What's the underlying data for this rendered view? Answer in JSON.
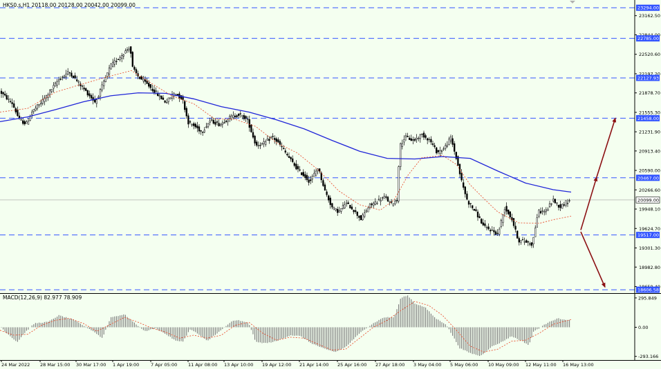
{
  "colors": {
    "background": "#f4fff0",
    "axis": "#000000",
    "level_line": "#3355ff",
    "ma_slow": "#1f24d8",
    "ma_fast": "#e8401f",
    "candle": "#000000",
    "histogram": "#7a7a7a",
    "macd_signal": "#e8401f",
    "arrow": "#8b0f12",
    "current_price_line": "#b0b0b0",
    "label_bg": "#3355ff",
    "label_text": "#ffffff",
    "current_label_bg": "#ffffff"
  },
  "chart_data": [
    {
      "type": "candlestick",
      "header": "HKS0.s,H1  20118.00 20128.00 20042.00 20099.00",
      "ylim": [
        18550,
        23400
      ],
      "y_ticks": [
        "23162.50",
        "22844.00",
        "22520.60",
        "22197.20",
        "21878.70",
        "21555.30",
        "21231.90",
        "20913.40",
        "20590.00",
        "20266.60",
        "19948.10",
        "19624.70",
        "19301.30",
        "18982.80",
        "18659.40"
      ],
      "x_labels": [
        "24 Mar 2022",
        "28 Mar 15:00",
        "30 Mar 17:00",
        "1 Apr 19:00",
        "7 Apr 05:00",
        "11 Apr 08:00",
        "13 Apr 10:00",
        "19 Apr 12:00",
        "21 Apr 14:00",
        "25 Apr 16:00",
        "27 Apr 18:00",
        "3 May 04:00",
        "5 May 06:00",
        "10 May 09:00",
        "12 May 11:00",
        "16 May 13:00"
      ],
      "levels": [
        {
          "value": 23294.0,
          "label": "23294.00"
        },
        {
          "value": 22785.0,
          "label": "22785.00"
        },
        {
          "value": 22127.93,
          "label": "22127.93"
        },
        {
          "value": 21458.0,
          "label": "21458.00"
        },
        {
          "value": 20467.0,
          "label": "20467.00"
        },
        {
          "value": 19517.0,
          "label": "19517.00"
        },
        {
          "value": 18606.58,
          "label": "18606.58"
        }
      ],
      "current_price": {
        "value": 20099.0,
        "label": "20099.00"
      },
      "price_path": [
        [
          0,
          21900
        ],
        [
          18,
          21700
        ],
        [
          28,
          21430
        ],
        [
          38,
          21360
        ],
        [
          46,
          21560
        ],
        [
          58,
          21700
        ],
        [
          70,
          21870
        ],
        [
          85,
          22100
        ],
        [
          100,
          22230
        ],
        [
          112,
          22070
        ],
        [
          126,
          21880
        ],
        [
          138,
          21720
        ],
        [
          150,
          22050
        ],
        [
          160,
          22330
        ],
        [
          172,
          22460
        ],
        [
          184,
          22600
        ],
        [
          188,
          22650
        ],
        [
          192,
          22280
        ],
        [
          200,
          22150
        ],
        [
          214,
          22010
        ],
        [
          226,
          21870
        ],
        [
          240,
          21720
        ],
        [
          252,
          21880
        ],
        [
          264,
          21780
        ],
        [
          272,
          21390
        ],
        [
          282,
          21320
        ],
        [
          292,
          21230
        ],
        [
          304,
          21420
        ],
        [
          318,
          21350
        ],
        [
          332,
          21470
        ],
        [
          346,
          21520
        ],
        [
          358,
          21430
        ],
        [
          370,
          21010
        ],
        [
          382,
          21040
        ],
        [
          394,
          21150
        ],
        [
          406,
          21000
        ],
        [
          418,
          20800
        ],
        [
          430,
          20610
        ],
        [
          440,
          20500
        ],
        [
          448,
          20400
        ],
        [
          460,
          20640
        ],
        [
          470,
          20250
        ],
        [
          480,
          19980
        ],
        [
          490,
          19900
        ],
        [
          500,
          20050
        ],
        [
          510,
          19950
        ],
        [
          522,
          19780
        ],
        [
          534,
          20000
        ],
        [
          546,
          20080
        ],
        [
          556,
          20150
        ],
        [
          566,
          20030
        ],
        [
          574,
          20100
        ],
        [
          578,
          20990
        ],
        [
          586,
          21150
        ],
        [
          598,
          21080
        ],
        [
          610,
          21190
        ],
        [
          622,
          21090
        ],
        [
          632,
          20890
        ],
        [
          642,
          20950
        ],
        [
          652,
          21130
        ],
        [
          660,
          20790
        ],
        [
          668,
          20390
        ],
        [
          676,
          20080
        ],
        [
          688,
          19900
        ],
        [
          700,
          19650
        ],
        [
          710,
          19600
        ],
        [
          720,
          19530
        ],
        [
          730,
          19970
        ],
        [
          740,
          19790
        ],
        [
          750,
          19420
        ],
        [
          760,
          19410
        ],
        [
          770,
          19360
        ],
        [
          778,
          19900
        ],
        [
          790,
          19920
        ],
        [
          800,
          20100
        ],
        [
          810,
          19980
        ],
        [
          818,
          20060
        ],
        [
          826,
          20099
        ]
      ],
      "ma_slow": [
        [
          0,
          21400
        ],
        [
          40,
          21480
        ],
        [
          80,
          21600
        ],
        [
          120,
          21730
        ],
        [
          160,
          21830
        ],
        [
          200,
          21880
        ],
        [
          240,
          21870
        ],
        [
          280,
          21780
        ],
        [
          320,
          21650
        ],
        [
          360,
          21560
        ],
        [
          400,
          21430
        ],
        [
          440,
          21280
        ],
        [
          480,
          21090
        ],
        [
          520,
          20910
        ],
        [
          560,
          20790
        ],
        [
          600,
          20780
        ],
        [
          640,
          20820
        ],
        [
          680,
          20790
        ],
        [
          720,
          20580
        ],
        [
          760,
          20380
        ],
        [
          800,
          20270
        ],
        [
          826,
          20230
        ]
      ],
      "ma_fast": [
        [
          0,
          21560
        ],
        [
          40,
          21620
        ],
        [
          80,
          21890
        ],
        [
          120,
          22030
        ],
        [
          160,
          22160
        ],
        [
          190,
          22250
        ],
        [
          220,
          22030
        ],
        [
          250,
          21820
        ],
        [
          280,
          21700
        ],
        [
          310,
          21450
        ],
        [
          340,
          21440
        ],
        [
          370,
          21320
        ],
        [
          400,
          21050
        ],
        [
          430,
          20880
        ],
        [
          460,
          20600
        ],
        [
          490,
          20250
        ],
        [
          520,
          20020
        ],
        [
          550,
          19930
        ],
        [
          570,
          20100
        ],
        [
          590,
          20510
        ],
        [
          610,
          20800
        ],
        [
          640,
          20840
        ],
        [
          660,
          20690
        ],
        [
          680,
          20350
        ],
        [
          700,
          20120
        ],
        [
          720,
          19900
        ],
        [
          750,
          19720
        ],
        [
          780,
          19710
        ],
        [
          800,
          19770
        ],
        [
          826,
          19830
        ]
      ],
      "arrows": [
        {
          "from": [
            840,
            19600
          ],
          "to": [
            863,
            20480
          ]
        },
        {
          "from": [
            863,
            20480
          ],
          "to": [
            890,
            21460
          ]
        },
        {
          "from": [
            840,
            19570
          ],
          "to": [
            875,
            18650
          ]
        }
      ]
    },
    {
      "type": "bar",
      "title": "MACD(12,26,9) 82.977 78.909",
      "ylim": [
        -330,
        330
      ],
      "y_ticks": [
        "295.849",
        "0.00",
        "-293.166"
      ],
      "histogram_path": [
        [
          0,
          10
        ],
        [
          10,
          -60
        ],
        [
          25,
          -150
        ],
        [
          35,
          -60
        ],
        [
          50,
          40
        ],
        [
          70,
          55
        ],
        [
          85,
          120
        ],
        [
          105,
          80
        ],
        [
          120,
          20
        ],
        [
          135,
          -40
        ],
        [
          148,
          -110
        ],
        [
          160,
          100
        ],
        [
          180,
          130
        ],
        [
          195,
          40
        ],
        [
          210,
          -40
        ],
        [
          225,
          -10
        ],
        [
          240,
          -70
        ],
        [
          255,
          -140
        ],
        [
          265,
          -140
        ],
        [
          275,
          -20
        ],
        [
          285,
          -60
        ],
        [
          300,
          -140
        ],
        [
          310,
          -80
        ],
        [
          320,
          -30
        ],
        [
          335,
          60
        ],
        [
          345,
          70
        ],
        [
          360,
          40
        ],
        [
          370,
          -150
        ],
        [
          385,
          -160
        ],
        [
          400,
          -140
        ],
        [
          420,
          -80
        ],
        [
          435,
          -90
        ],
        [
          450,
          -160
        ],
        [
          470,
          -220
        ],
        [
          485,
          -250
        ],
        [
          500,
          -200
        ],
        [
          510,
          -130
        ],
        [
          525,
          -30
        ],
        [
          540,
          40
        ],
        [
          555,
          100
        ],
        [
          570,
          100
        ],
        [
          580,
          300
        ],
        [
          590,
          320
        ],
        [
          600,
          240
        ],
        [
          615,
          200
        ],
        [
          630,
          90
        ],
        [
          645,
          30
        ],
        [
          655,
          -90
        ],
        [
          665,
          -210
        ],
        [
          680,
          -260
        ],
        [
          695,
          -290
        ],
        [
          710,
          -200
        ],
        [
          725,
          -150
        ],
        [
          740,
          -90
        ],
        [
          755,
          -140
        ],
        [
          765,
          -180
        ],
        [
          772,
          -40
        ],
        [
          782,
          0
        ],
        [
          795,
          60
        ],
        [
          808,
          90
        ],
        [
          820,
          70
        ],
        [
          826,
          75
        ]
      ],
      "signal_path": [
        [
          0,
          -30
        ],
        [
          20,
          -80
        ],
        [
          40,
          -70
        ],
        [
          60,
          20
        ],
        [
          80,
          70
        ],
        [
          100,
          90
        ],
        [
          120,
          40
        ],
        [
          140,
          -40
        ],
        [
          160,
          30
        ],
        [
          180,
          100
        ],
        [
          200,
          50
        ],
        [
          220,
          -10
        ],
        [
          240,
          -50
        ],
        [
          260,
          -110
        ],
        [
          280,
          -80
        ],
        [
          300,
          -110
        ],
        [
          320,
          -80
        ],
        [
          340,
          20
        ],
        [
          360,
          50
        ],
        [
          380,
          -60
        ],
        [
          400,
          -130
        ],
        [
          420,
          -100
        ],
        [
          440,
          -110
        ],
        [
          460,
          -170
        ],
        [
          480,
          -230
        ],
        [
          500,
          -220
        ],
        [
          520,
          -110
        ],
        [
          540,
          0
        ],
        [
          560,
          70
        ],
        [
          580,
          170
        ],
        [
          600,
          260
        ],
        [
          620,
          220
        ],
        [
          640,
          120
        ],
        [
          660,
          -30
        ],
        [
          680,
          -190
        ],
        [
          700,
          -250
        ],
        [
          720,
          -220
        ],
        [
          740,
          -140
        ],
        [
          760,
          -130
        ],
        [
          780,
          -60
        ],
        [
          800,
          30
        ],
        [
          826,
          78
        ]
      ]
    }
  ]
}
